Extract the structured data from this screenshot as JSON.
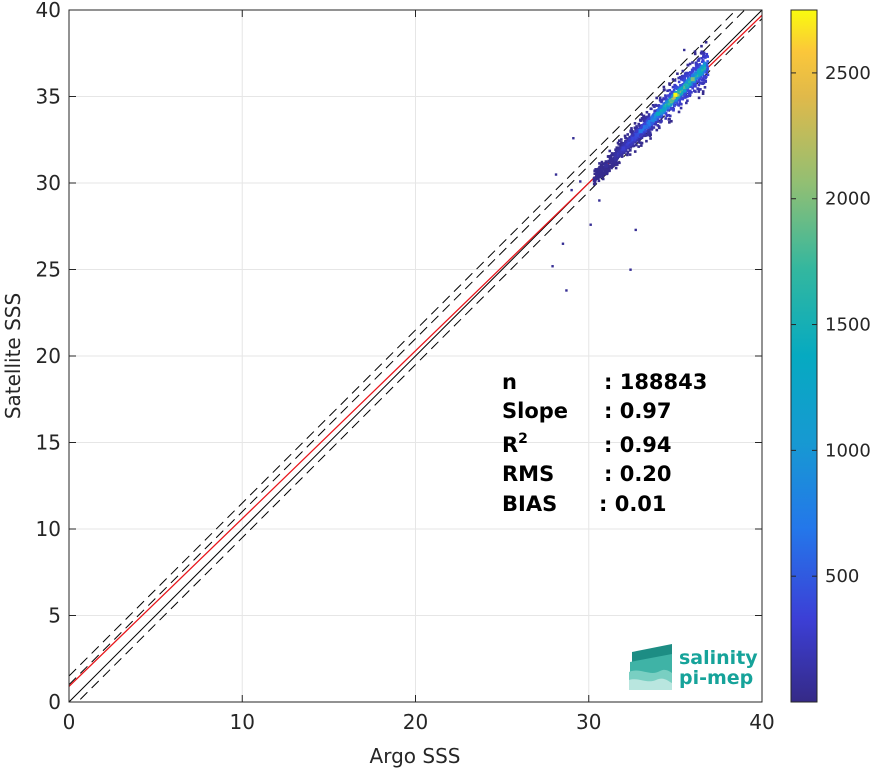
{
  "chart_data": {
    "type": "heatmap",
    "xlabel": "Argo SSS",
    "ylabel": "Satellite SSS",
    "xlim": [
      0,
      40
    ],
    "ylim": [
      0,
      40
    ],
    "xticks": [
      0,
      10,
      20,
      30,
      40
    ],
    "yticks": [
      0,
      5,
      10,
      15,
      20,
      25,
      30,
      35,
      40
    ],
    "grid": true,
    "reference_lines": {
      "one_to_one": {
        "color": "#000000",
        "style": "solid"
      },
      "regression": {
        "color": "#e8161b",
        "style": "solid",
        "slope": 0.97,
        "intercept": 0.9
      },
      "bounds": {
        "color": "#000000",
        "style": "dashed",
        "offsets": [
          -0.5,
          1.0,
          1.5
        ]
      }
    },
    "density_core": [
      {
        "x": 36.0,
        "y": 36.0,
        "count": 2000
      },
      {
        "x": 35.0,
        "y": 35.1,
        "count": 2750
      },
      {
        "x": 34.0,
        "y": 34.0,
        "count": 1400
      },
      {
        "x": 33.0,
        "y": 33.0,
        "count": 700
      },
      {
        "x": 32.0,
        "y": 32.0,
        "count": 300
      },
      {
        "x": 31.0,
        "y": 31.0,
        "count": 80
      }
    ],
    "outliers": [
      {
        "x": 28.7,
        "y": 23.8
      },
      {
        "x": 32.4,
        "y": 25.0
      },
      {
        "x": 27.9,
        "y": 25.2
      },
      {
        "x": 30.1,
        "y": 27.6
      },
      {
        "x": 32.7,
        "y": 27.3
      },
      {
        "x": 29.0,
        "y": 29.6
      },
      {
        "x": 28.1,
        "y": 30.5
      },
      {
        "x": 28.5,
        "y": 26.5
      },
      {
        "x": 30.6,
        "y": 29.0
      },
      {
        "x": 35.5,
        "y": 37.7
      },
      {
        "x": 29.1,
        "y": 32.6
      },
      {
        "x": 29.5,
        "y": 30.1
      }
    ],
    "colorbar": {
      "min": 0,
      "max": 2750,
      "ticks": [
        500,
        1000,
        1500,
        2000,
        2500
      ],
      "colormap": "parula"
    }
  },
  "stats": [
    {
      "label": "n",
      "sep": ": ",
      "value": "188843"
    },
    {
      "label": "Slope",
      "sep": ": ",
      "value": "0.97"
    },
    {
      "label": "R",
      "sup": "2",
      "sep": ": ",
      "value": "0.94"
    },
    {
      "label": "RMS",
      "sep": ": ",
      "value": "0.20"
    },
    {
      "label": "BIAS",
      "sep": ": ",
      "value": "0.01"
    }
  ],
  "logo": {
    "line1": "salinity",
    "line2": "pi-mep",
    "name": "salinity-pi-mep-logo-icon"
  }
}
